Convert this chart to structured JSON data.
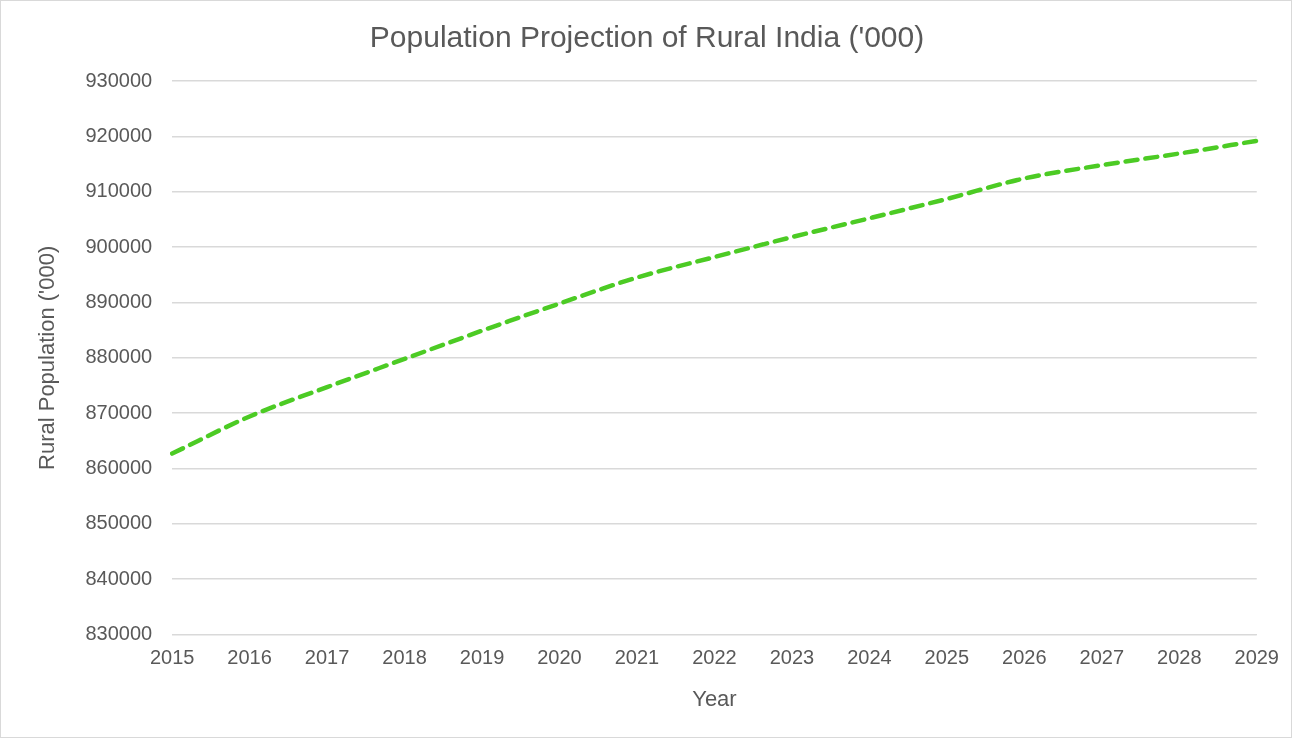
{
  "chart_data": {
    "type": "line",
    "title": "Population Projection of Rural India ('000)",
    "xlabel": "Year",
    "ylabel": "Rural Population ('000)",
    "categories": [
      "2015",
      "2016",
      "2017",
      "2018",
      "2019",
      "2020",
      "2021",
      "2022",
      "2023",
      "2024",
      "2025",
      "2026",
      "2027",
      "2028",
      "2029"
    ],
    "series": [
      {
        "color": "#4ccb24",
        "values": [
          862700,
          869400,
          874700,
          879800,
          884900,
          889800,
          894500,
          898200,
          901800,
          905200,
          908700,
          912400,
          914800,
          916900,
          919200
        ]
      }
    ],
    "ylim": [
      830000,
      930000
    ],
    "yticks": [
      830000,
      840000,
      850000,
      860000,
      870000,
      880000,
      890000,
      900000,
      910000,
      920000,
      930000
    ],
    "grid": "y",
    "legend": false,
    "marker": "none",
    "line_style": "dashed"
  }
}
